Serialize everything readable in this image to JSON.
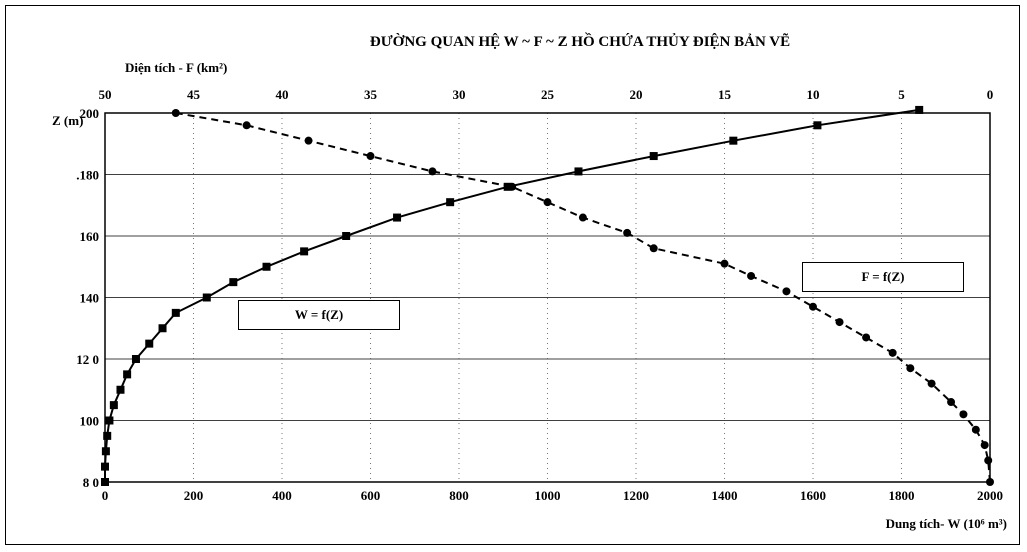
{
  "chart_data": {
    "type": "line",
    "title": "ĐƯỜNG QUAN HỆ W ~ F ~ Z HỒ CHỨA THỦY ĐIỆN BẢN VẼ",
    "ylabel": "Z (m)",
    "xlabel_bottom": "Dung tích- W (10⁶ m³)",
    "xlabel_top": "Diện tích - F (km²)",
    "ylim": [
      80,
      200
    ],
    "xlim_bottom": [
      0,
      2000
    ],
    "xlim_top": [
      50,
      0
    ],
    "y_ticks": [
      "8 0",
      "100",
      "12 0",
      "140",
      "160",
      ".180",
      "200"
    ],
    "x_ticks_bottom": [
      "0",
      "200",
      "400",
      "600",
      "800",
      "1000",
      "1200",
      "1400",
      "1600",
      "1800",
      "2000"
    ],
    "x_ticks_top": [
      "50",
      "45",
      "40",
      "35",
      "30",
      "25",
      "20",
      "15",
      "10",
      "5",
      "0"
    ],
    "series": [
      {
        "name": "W = f(Z)",
        "axis": "bottom",
        "style": "solid",
        "marker": "square",
        "points": [
          [
            0,
            80
          ],
          [
            0,
            85
          ],
          [
            2,
            90
          ],
          [
            5,
            95
          ],
          [
            10,
            100
          ],
          [
            20,
            105
          ],
          [
            35,
            110
          ],
          [
            50,
            115
          ],
          [
            70,
            120
          ],
          [
            100,
            125
          ],
          [
            130,
            130
          ],
          [
            160,
            135
          ],
          [
            230,
            140
          ],
          [
            290,
            145
          ],
          [
            365,
            150
          ],
          [
            450,
            155
          ],
          [
            545,
            160
          ],
          [
            660,
            166
          ],
          [
            780,
            171
          ],
          [
            910,
            176
          ],
          [
            1070,
            181
          ],
          [
            1240,
            186
          ],
          [
            1420,
            191
          ],
          [
            1610,
            196
          ],
          [
            1840,
            201
          ]
        ]
      },
      {
        "name": "F = f(Z)",
        "axis": "top",
        "style": "dashed",
        "marker": "circle",
        "points": [
          [
            0,
            80
          ],
          [
            0.1,
            87
          ],
          [
            0.3,
            92
          ],
          [
            0.8,
            97
          ],
          [
            1.5,
            102
          ],
          [
            2.2,
            106
          ],
          [
            3.3,
            112
          ],
          [
            4.5,
            117
          ],
          [
            5.5,
            122
          ],
          [
            7,
            127
          ],
          [
            8.5,
            132
          ],
          [
            10,
            137
          ],
          [
            11.5,
            142
          ],
          [
            13.5,
            147
          ],
          [
            15,
            151
          ],
          [
            19,
            156
          ],
          [
            20.5,
            161
          ],
          [
            23,
            166
          ],
          [
            25,
            171
          ],
          [
            27,
            176
          ],
          [
            31.5,
            181
          ],
          [
            35,
            186
          ],
          [
            38.5,
            191
          ],
          [
            42,
            196
          ],
          [
            46,
            200
          ]
        ]
      }
    ]
  }
}
